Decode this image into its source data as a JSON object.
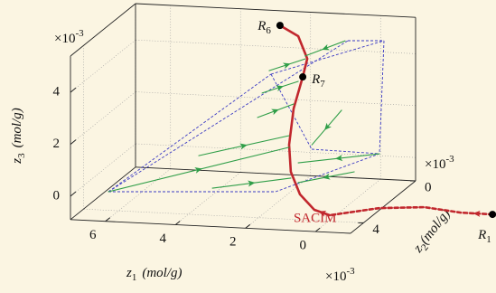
{
  "chart_data": {
    "type": "line3d",
    "xlabel": {
      "symbol": "z",
      "subscript": "1",
      "unit": "(mol/g)"
    },
    "ylabel": {
      "symbol": "z",
      "subscript": "2",
      "unit": "(mol/g)"
    },
    "zlabel": {
      "symbol": "z",
      "subscript": "3",
      "unit": "(mol/g)"
    },
    "multiplier": {
      "base": "×10",
      "exponent": "-3"
    },
    "xlim": [
      -1,
      7
    ],
    "xticks": [
      0,
      2,
      4,
      6
    ],
    "ylim": [
      0,
      5
    ],
    "yticks": [
      0,
      4
    ],
    "zlim": [
      -0.9,
      5.4
    ],
    "zticks": [
      0,
      2,
      4
    ],
    "grid": true,
    "series": [
      {
        "name": "SACIM",
        "color": "#c1272d",
        "arrow": "start",
        "x": [
          0.71,
          1.15,
          1.56,
          1.82,
          1.87,
          1.74,
          1.48,
          1.35,
          1.61,
          2.13
        ],
        "y": [
          2,
          2,
          2,
          2,
          2,
          2,
          2,
          2,
          2,
          2
        ],
        "z": [
          -1.53,
          -1.35,
          -0.78,
          0.07,
          1.11,
          2.51,
          3.75,
          4.46,
          5.31,
          5.69
        ]
      },
      {
        "color": "#c1272d",
        "dash": true,
        "arrow": "start",
        "x": [
          -3.94,
          -3.03,
          -2.0,
          -0.71,
          0.71
        ],
        "y": [
          2,
          2,
          2,
          2,
          2
        ],
        "z": [
          -1.19,
          -1.18,
          -1.04,
          -1.16,
          -1.53
        ]
      },
      {
        "color": "#2f9e48",
        "arrow": "middle",
        "x": [
          7.03,
          1.87
        ],
        "y": [
          2,
          2
        ],
        "z": [
          -1.04,
          1.01
        ]
      },
      {
        "color": "#2f9e48",
        "arrow": "middle",
        "x": [
          4.06,
          1.82
        ],
        "y": [
          2,
          2
        ],
        "z": [
          -0.71,
          -0.17
        ]
      },
      {
        "color": "#2f9e48",
        "arrow": "middle",
        "x": [
          4.45,
          1.87
        ],
        "y": [
          2,
          2
        ],
        "z": [
          0.52,
          1.46
        ]
      },
      {
        "color": "#2f9e48",
        "arrow": "middle",
        "x": [
          2.77,
          1.74
        ],
        "y": [
          2,
          2
        ],
        "z": [
          2.1,
          2.69
        ]
      },
      {
        "color": "#2f9e48",
        "arrow": "middle",
        "x": [
          2.64,
          1.61
        ],
        "y": [
          2,
          2
        ],
        "z": [
          3.05,
          3.57
        ]
      },
      {
        "color": "#2f9e48",
        "arrow": "middle",
        "x": [
          2.44,
          1.41
        ],
        "y": [
          2,
          2
        ],
        "z": [
          3.93,
          4.45
        ]
      },
      {
        "color": "#2f9e48",
        "arrow": "middle",
        "x": [
          0.27,
          1.41
        ],
        "y": [
          2,
          2
        ],
        "z": [
          5.22,
          4.56
        ]
      },
      {
        "color": "#2f9e48",
        "arrow": "middle",
        "x": [
          0.37,
          1.22
        ],
        "y": [
          2,
          2
        ],
        "z": [
          2.54,
          1.15
        ]
      },
      {
        "color": "#2f9e48",
        "arrow": "middle",
        "x": [
          -0.71,
          1.61
        ],
        "y": [
          2,
          2
        ],
        "z": [
          0.93,
          0.43
        ]
      },
      {
        "color": "#2f9e48",
        "arrow": "middle",
        "x": [
          0.01,
          1.61
        ],
        "y": [
          2,
          2
        ],
        "z": [
          0.19,
          -0.33
        ]
      }
    ],
    "points": [
      {
        "label": "R",
        "subscript": "6",
        "x": 2.13,
        "y": 2,
        "z": 5.69,
        "label_side": "left"
      },
      {
        "label": "R",
        "subscript": "7",
        "x": 1.48,
        "y": 2,
        "z": 3.75,
        "label_side": "right"
      },
      {
        "label": "R",
        "subscript": "1",
        "x": -3.94,
        "y": 2,
        "z": -1.19,
        "label_side": "below"
      }
    ]
  }
}
